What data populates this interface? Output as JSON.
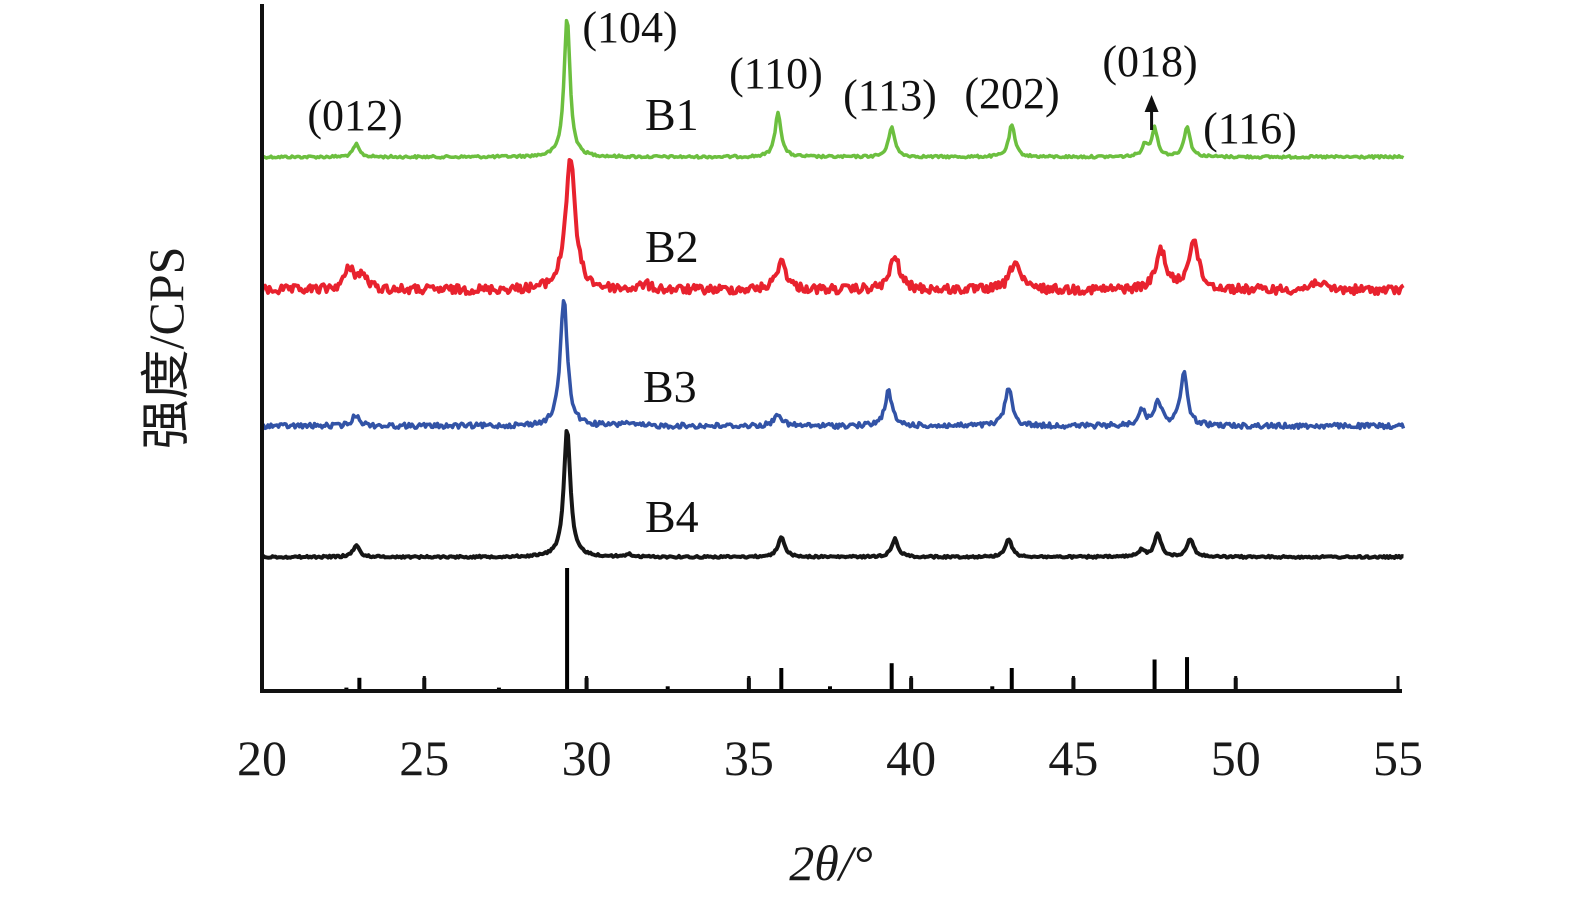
{
  "chart_data": {
    "type": "line",
    "title": "",
    "xlabel": "2θ/°",
    "ylabel": "强度/CPS",
    "xlim": [
      20,
      55
    ],
    "x_ticks": [
      20,
      25,
      30,
      35,
      40,
      45,
      50,
      55
    ],
    "y_ticks_shown": false,
    "grid": false,
    "legend": "inline-labels",
    "series": [
      {
        "name": "B1",
        "color": "#6cbf3f",
        "peaks": [
          {
            "x": 22.9,
            "rel_intensity": 0.09,
            "hkl": "(012)"
          },
          {
            "x": 29.4,
            "rel_intensity": 1.0,
            "hkl": "(104)"
          },
          {
            "x": 35.9,
            "rel_intensity": 0.32,
            "hkl": "(110)"
          },
          {
            "x": 39.4,
            "rel_intensity": 0.22,
            "hkl": "(113)"
          },
          {
            "x": 43.1,
            "rel_intensity": 0.23,
            "hkl": "(202)"
          },
          {
            "x": 47.2,
            "rel_intensity": 0.08
          },
          {
            "x": 47.5,
            "rel_intensity": 0.2,
            "hkl": "(018)"
          },
          {
            "x": 48.5,
            "rel_intensity": 0.22,
            "hkl": "(116)"
          }
        ]
      },
      {
        "name": "B2",
        "color": "#e8222e",
        "peaks": [
          {
            "x": 22.7,
            "rel_intensity": 0.16
          },
          {
            "x": 23.1,
            "rel_intensity": 0.1
          },
          {
            "x": 29.5,
            "rel_intensity": 1.0
          },
          {
            "x": 31.8,
            "rel_intensity": 0.04
          },
          {
            "x": 36.0,
            "rel_intensity": 0.22
          },
          {
            "x": 39.5,
            "rel_intensity": 0.25
          },
          {
            "x": 43.2,
            "rel_intensity": 0.22
          },
          {
            "x": 47.7,
            "rel_intensity": 0.3
          },
          {
            "x": 48.7,
            "rel_intensity": 0.38
          },
          {
            "x": 52.5,
            "rel_intensity": 0.07
          }
        ]
      },
      {
        "name": "B3",
        "color": "#3253a6",
        "peaks": [
          {
            "x": 22.9,
            "rel_intensity": 0.09
          },
          {
            "x": 29.3,
            "rel_intensity": 1.0
          },
          {
            "x": 31.2,
            "rel_intensity": 0.03
          },
          {
            "x": 35.9,
            "rel_intensity": 0.1
          },
          {
            "x": 39.3,
            "rel_intensity": 0.27
          },
          {
            "x": 43.0,
            "rel_intensity": 0.3
          },
          {
            "x": 47.1,
            "rel_intensity": 0.12
          },
          {
            "x": 47.6,
            "rel_intensity": 0.2
          },
          {
            "x": 48.4,
            "rel_intensity": 0.41
          }
        ]
      },
      {
        "name": "B4",
        "color": "#161616",
        "peaks": [
          {
            "x": 22.9,
            "rel_intensity": 0.09
          },
          {
            "x": 29.4,
            "rel_intensity": 1.0
          },
          {
            "x": 31.3,
            "rel_intensity": 0.02
          },
          {
            "x": 36.0,
            "rel_intensity": 0.16
          },
          {
            "x": 39.5,
            "rel_intensity": 0.14
          },
          {
            "x": 43.0,
            "rel_intensity": 0.14
          },
          {
            "x": 47.1,
            "rel_intensity": 0.05
          },
          {
            "x": 47.6,
            "rel_intensity": 0.18
          },
          {
            "x": 48.6,
            "rel_intensity": 0.14
          }
        ]
      }
    ],
    "reference_pattern": {
      "color": "#000000",
      "lines": [
        {
          "x": 22.6,
          "rel_intensity": 0.02
        },
        {
          "x": 23.0,
          "rel_intensity": 0.1
        },
        {
          "x": 25.0,
          "rel_intensity": 0.1
        },
        {
          "x": 27.3,
          "rel_intensity": 0.02
        },
        {
          "x": 29.4,
          "rel_intensity": 1.0
        },
        {
          "x": 30.0,
          "rel_intensity": 0.1
        },
        {
          "x": 32.5,
          "rel_intensity": 0.03
        },
        {
          "x": 35.0,
          "rel_intensity": 0.1
        },
        {
          "x": 36.0,
          "rel_intensity": 0.18
        },
        {
          "x": 37.5,
          "rel_intensity": 0.03
        },
        {
          "x": 39.4,
          "rel_intensity": 0.22
        },
        {
          "x": 40.0,
          "rel_intensity": 0.1
        },
        {
          "x": 42.5,
          "rel_intensity": 0.03
        },
        {
          "x": 43.1,
          "rel_intensity": 0.18
        },
        {
          "x": 45.0,
          "rel_intensity": 0.1
        },
        {
          "x": 47.5,
          "rel_intensity": 0.25
        },
        {
          "x": 48.5,
          "rel_intensity": 0.27
        },
        {
          "x": 50.0,
          "rel_intensity": 0.1
        }
      ]
    },
    "annotations": [
      {
        "text": "(012)",
        "x": 22.9
      },
      {
        "text": "(104)",
        "x": 29.4
      },
      {
        "text": "(110)",
        "x": 35.9
      },
      {
        "text": "(113)",
        "x": 39.4
      },
      {
        "text": "(202)",
        "x": 43.1
      },
      {
        "text": "(018)",
        "x": 47.5,
        "arrow": true
      },
      {
        "text": "(116)",
        "x": 48.5
      }
    ]
  }
}
